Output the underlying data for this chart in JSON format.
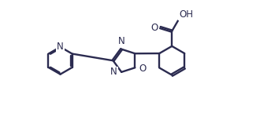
{
  "bg": "#ffffff",
  "bc": "#2b2b50",
  "lw": 1.7,
  "doff": 0.042,
  "fs": 8.5,
  "xlim": [
    0,
    10
  ],
  "ylim": [
    0,
    4.6
  ]
}
